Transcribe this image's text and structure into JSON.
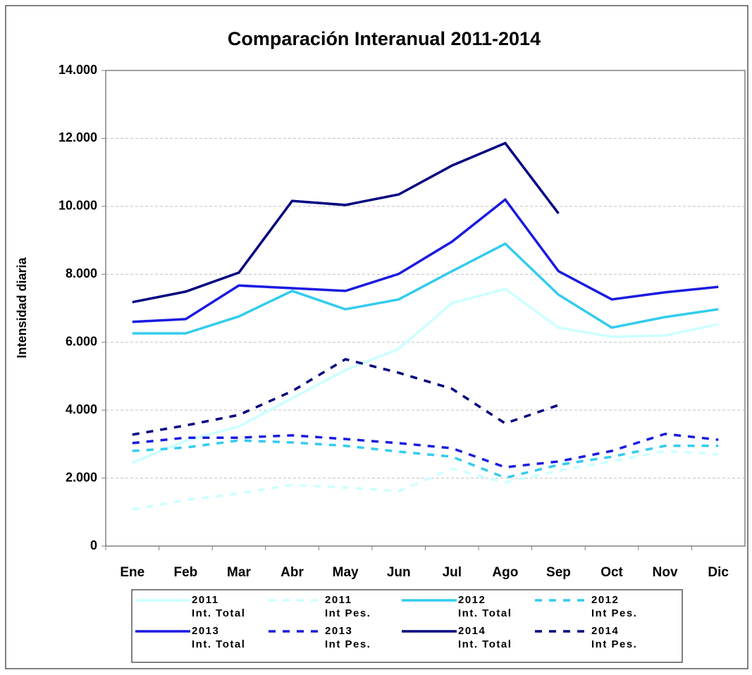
{
  "chart_data": {
    "type": "line",
    "title": "Comparación Interanual 2011-2014",
    "y_label": "Intensidad diaria",
    "categories": [
      "Ene",
      "Feb",
      "Mar",
      "Abr",
      "May",
      "Jun",
      "Jul",
      "Ago",
      "Sep",
      "Oct",
      "Nov",
      "Dic"
    ],
    "ylim": [
      0,
      14000
    ],
    "yticks": [
      0,
      {
        "value": 2000,
        "label": "2.000"
      },
      {
        "value": 4000,
        "label": "4.000"
      },
      {
        "value": 6000,
        "label": "6.000"
      },
      {
        "value": 8000,
        "label": "8.000"
      },
      {
        "value": 10000,
        "label": "10.000"
      },
      {
        "value": 12000,
        "label": "12.000"
      },
      {
        "value": 14000,
        "label": "14.000"
      }
    ],
    "grid": true,
    "series": [
      {
        "name": "2011\nInt. Total",
        "color": "#ccffff",
        "style": "solid",
        "values": [
          2450,
          3100,
          3520,
          4350,
          5180,
          5800,
          7150,
          7570,
          6430,
          6160,
          6200,
          6530
        ]
      },
      {
        "name": "2011\nInt Pes.",
        "color": "#ccffff",
        "style": "dashed",
        "values": [
          1080,
          1350,
          1550,
          1800,
          1720,
          1620,
          2280,
          1870,
          2220,
          2490,
          2800,
          2700
        ]
      },
      {
        "name": "2012\nInt. Total",
        "color": "#33ccee",
        "style": "solid",
        "values": [
          6260,
          6260,
          6760,
          7510,
          6970,
          7260,
          8090,
          8900,
          7400,
          6430,
          6740,
          6970
        ]
      },
      {
        "name": "2012\nInt Pes.",
        "color": "#33ccee",
        "style": "dashed",
        "values": [
          2800,
          2900,
          3110,
          3050,
          2950,
          2780,
          2630,
          2010,
          2390,
          2630,
          2950,
          2950
        ]
      },
      {
        "name": "2013\nInt. Total",
        "color": "#1a1ae0",
        "style": "solid",
        "values": [
          6600,
          6680,
          7670,
          7590,
          7510,
          8010,
          8960,
          10200,
          8090,
          7260,
          7470,
          7630
        ]
      },
      {
        "name": "2013\nInt Pes.",
        "color": "#1a1ae0",
        "style": "dashed",
        "values": [
          3030,
          3190,
          3190,
          3260,
          3150,
          3030,
          2880,
          2320,
          2490,
          2800,
          3300,
          3130
        ]
      },
      {
        "name": "2014\nInt. Total",
        "color": "#000080",
        "style": "solid",
        "values": [
          7180,
          7490,
          8050,
          10160,
          10040,
          10350,
          11200,
          11860,
          9790,
          null,
          null,
          null
        ]
      },
      {
        "name": "2014\nInt Pes.",
        "color": "#000080",
        "style": "dashed",
        "values": [
          3280,
          3550,
          3860,
          4560,
          5500,
          5100,
          4630,
          3610,
          4150,
          null,
          null,
          null
        ]
      }
    ]
  }
}
